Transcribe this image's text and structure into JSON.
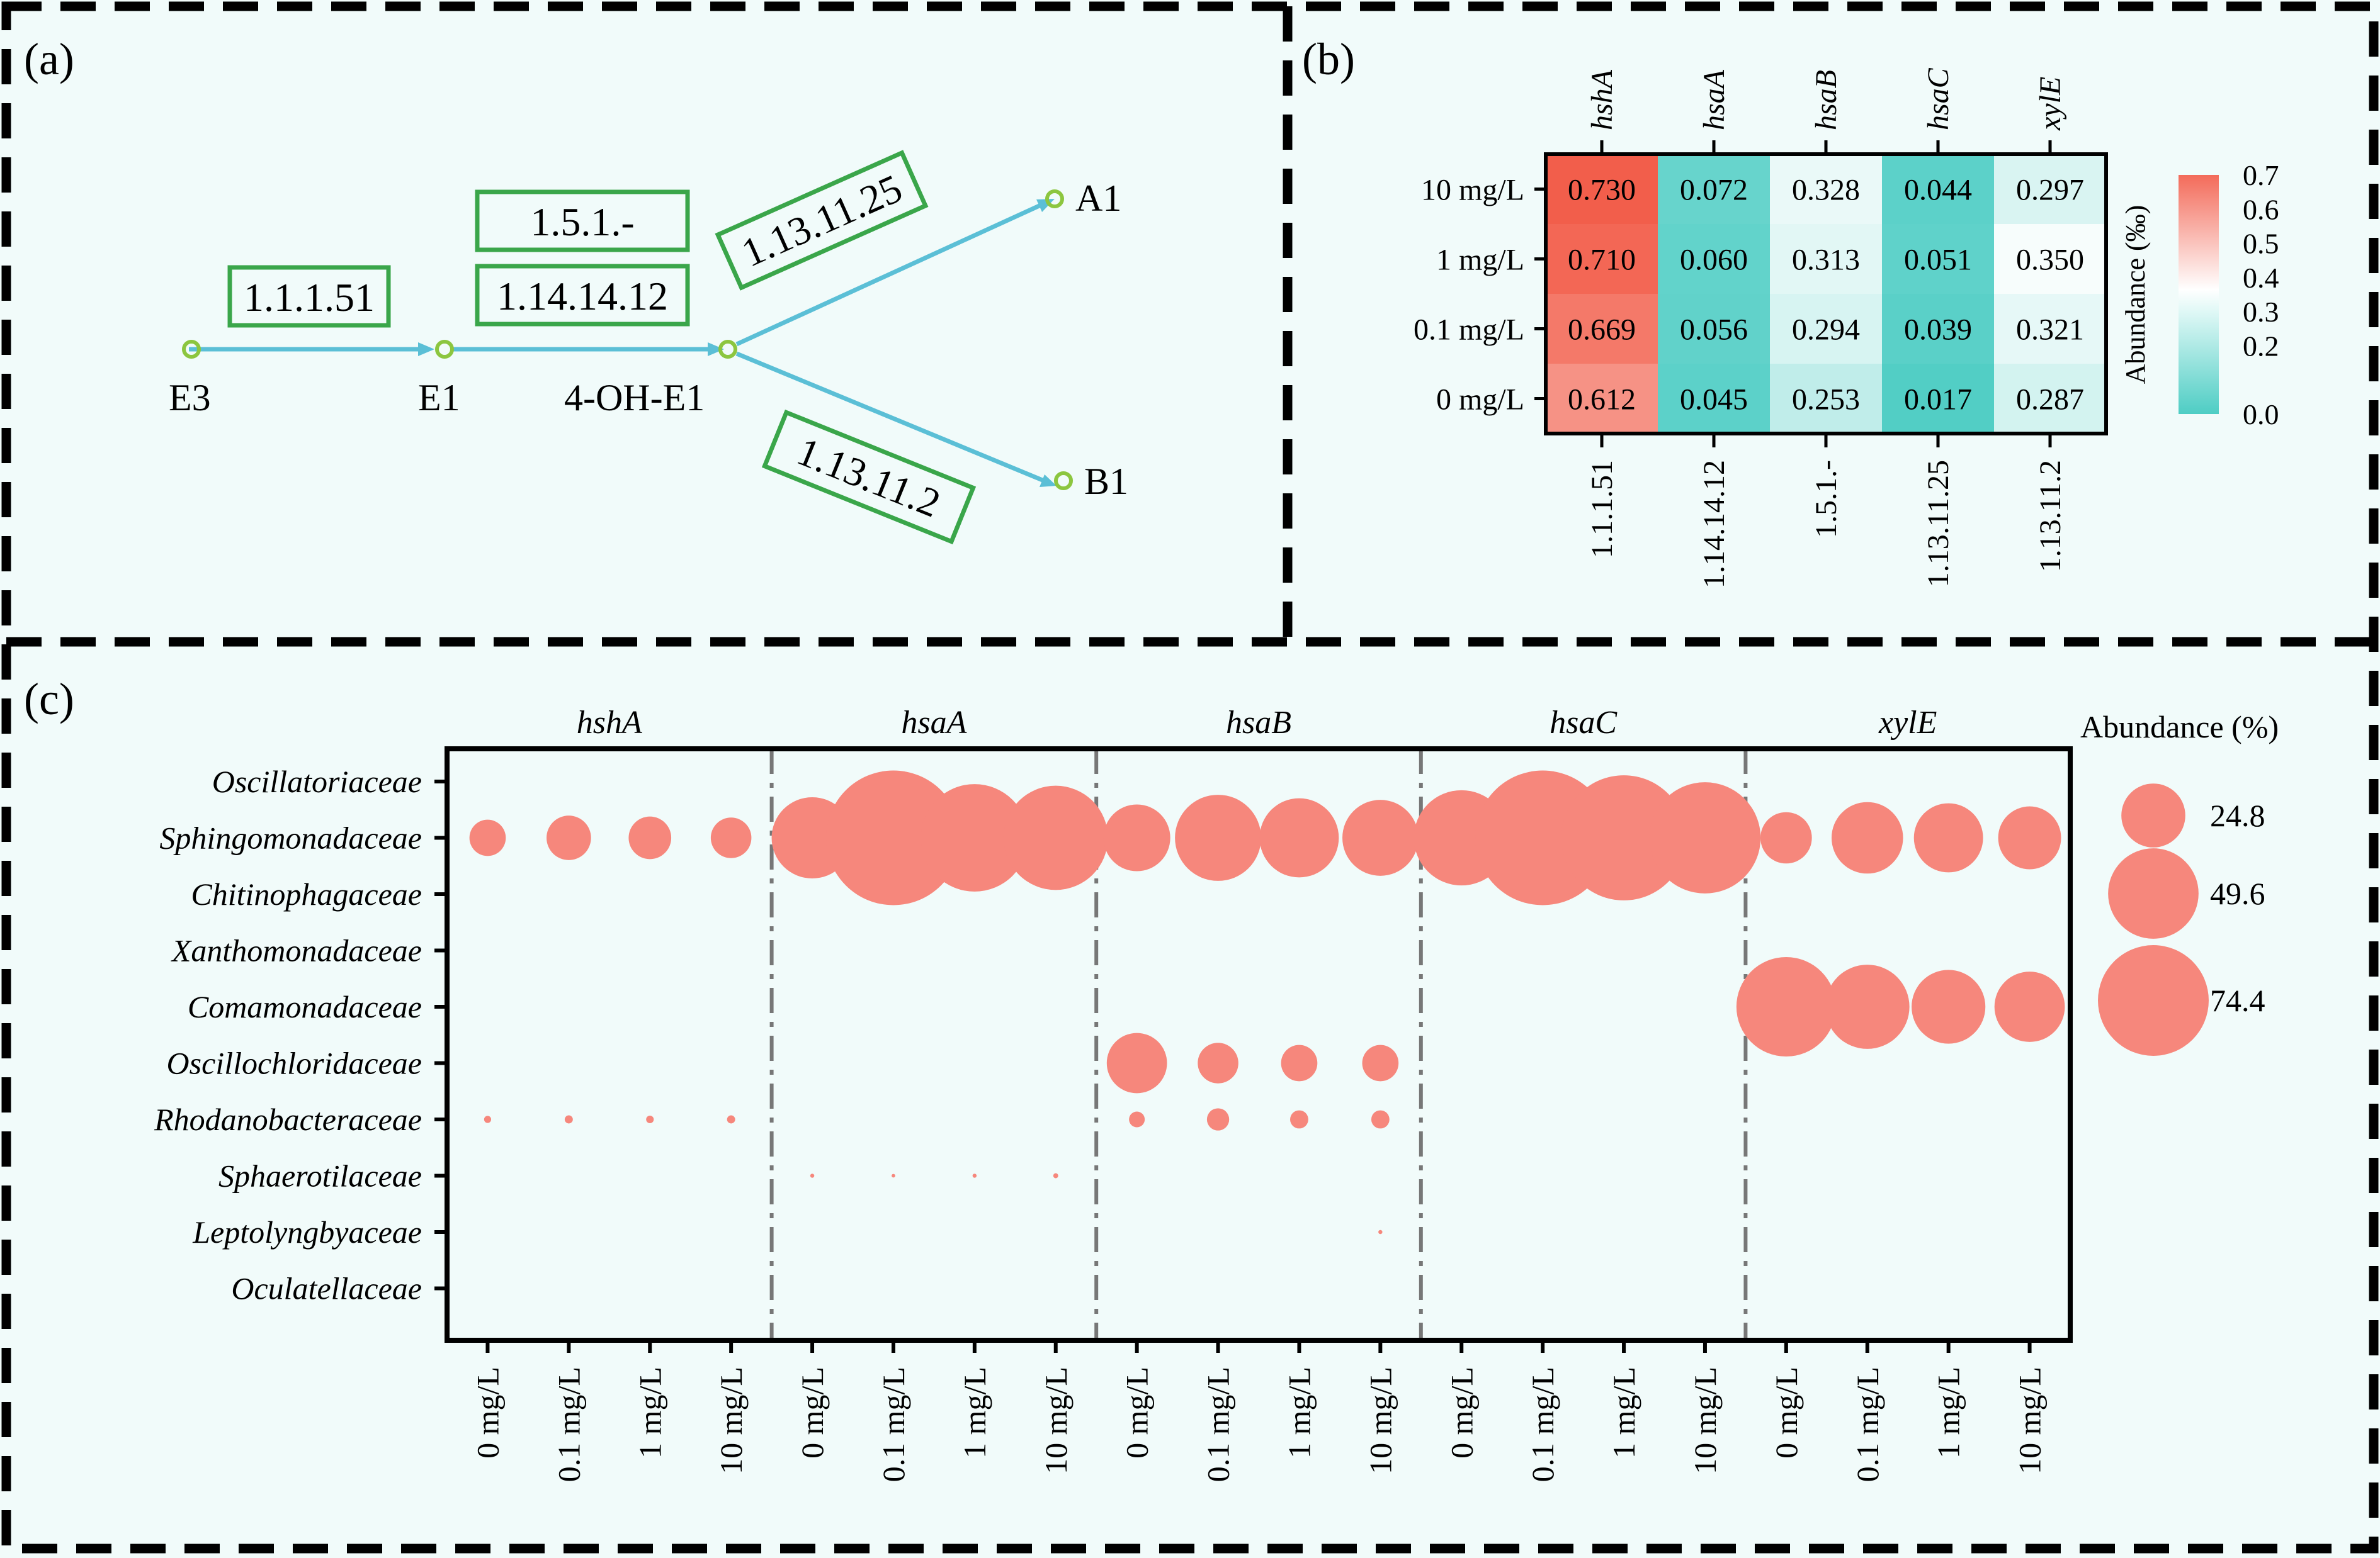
{
  "panel_labels": {
    "a": "(a)",
    "b": "(b)",
    "c": "(c)"
  },
  "colors": {
    "background": "#f1fbfa",
    "arrow": "#5bbfd6",
    "node_ring": "#8cc63f",
    "enzyme_box": "#3aa64a",
    "heat_low": "#4ecdc4",
    "heat_mid": "#ffffff",
    "heat_high": "#f36b5a",
    "bubble": "#f6877c",
    "divider": "#777777"
  },
  "pathway": {
    "nodes": [
      {
        "id": "E3",
        "label": "E3"
      },
      {
        "id": "E1",
        "label": "E1"
      },
      {
        "id": "4OH",
        "label": "4-OH-E1"
      },
      {
        "id": "A1",
        "label": "A1"
      },
      {
        "id": "B1",
        "label": "B1"
      }
    ],
    "enzymes": [
      {
        "id": "e1",
        "label": "1.1.1.51"
      },
      {
        "id": "e2",
        "label": "1.5.1.-"
      },
      {
        "id": "e3",
        "label": "1.14.14.12"
      },
      {
        "id": "e4",
        "label": "1.13.11.25"
      },
      {
        "id": "e5",
        "label": "1.13.11.2"
      }
    ]
  },
  "chart_data": [
    {
      "type": "heatmap",
      "title": "",
      "genes": [
        "hshA",
        "hsaA",
        "hsaB",
        "hsaC",
        "xylE"
      ],
      "enzymes": [
        "1.1.1.51",
        "1.14.14.12",
        "1.5.1.-",
        "1.13.11.25",
        "1.13.11.2"
      ],
      "rows": [
        "10 mg/L",
        "1 mg/L",
        "0.1 mg/L",
        "0 mg/L"
      ],
      "values": [
        [
          0.73,
          0.072,
          0.328,
          0.044,
          0.297
        ],
        [
          0.71,
          0.06,
          0.313,
          0.051,
          0.35
        ],
        [
          0.669,
          0.056,
          0.294,
          0.039,
          0.321
        ],
        [
          0.612,
          0.045,
          0.253,
          0.017,
          0.287
        ]
      ],
      "value_labels": [
        [
          "0.730",
          "0.072",
          "0.328",
          "0.044",
          "0.297"
        ],
        [
          "0.710",
          "0.060",
          "0.313",
          "0.051",
          "0.350"
        ],
        [
          "0.669",
          "0.056",
          "0.294",
          "0.039",
          "0.321"
        ],
        [
          "0.612",
          "0.045",
          "0.253",
          "0.017",
          "0.287"
        ]
      ],
      "colorbar": {
        "label": "Abundance (‰)",
        "range": [
          0.0,
          0.7
        ],
        "ticks": [
          "0.7",
          "0.6",
          "0.5",
          "0.4",
          "0.3",
          "0.2",
          "0.0"
        ]
      }
    },
    {
      "type": "scatter",
      "title": "",
      "panels": [
        "hshA",
        "hsaA",
        "hsaB",
        "hsaC",
        "xylE"
      ],
      "concentrations": [
        "0 mg/L",
        "0.1 mg/L",
        "1 mg/L",
        "10 mg/L"
      ],
      "families": [
        "Oscillatoriaceae",
        "Sphingomonadaceae",
        "Chitinophagaceae",
        "Xanthomonadaceae",
        "Comamonadaceae",
        "Oscillochloridaceae",
        "Rhodanobacteraceae",
        "Sphaerotilaceae",
        "Leptolyngbyaceae",
        "Oculatellaceae"
      ],
      "values": {
        "hshA": [
          [
            0,
            0,
            0,
            0
          ],
          [
            8,
            12,
            11,
            10
          ],
          [
            0,
            0,
            0,
            0
          ],
          [
            0,
            0,
            0,
            0
          ],
          [
            0,
            0,
            0,
            0
          ],
          [
            0,
            0,
            0,
            0
          ],
          [
            0.3,
            0.4,
            0.35,
            0.4
          ],
          [
            0,
            0,
            0,
            0
          ],
          [
            0,
            0,
            0,
            0
          ],
          [
            0,
            0,
            0,
            0
          ]
        ],
        "hsaA": [
          [
            0,
            0,
            0,
            0
          ],
          [
            40,
            110,
            70,
            66
          ],
          [
            0,
            0,
            0,
            0
          ],
          [
            0,
            0,
            0,
            0
          ],
          [
            0,
            0,
            0,
            0
          ],
          [
            0,
            0,
            0,
            0
          ],
          [
            0,
            0,
            0,
            0
          ],
          [
            0.1,
            0.08,
            0.1,
            0.15
          ],
          [
            0,
            0,
            0,
            0
          ],
          [
            0,
            0,
            0,
            0
          ]
        ],
        "hsaB": [
          [
            0,
            0,
            0,
            0
          ],
          [
            27,
            45,
            38,
            35
          ],
          [
            0,
            0,
            0,
            0
          ],
          [
            0,
            0,
            0,
            0
          ],
          [
            0,
            0,
            0,
            0
          ],
          [
            22,
            10,
            8,
            8
          ],
          [
            1.5,
            3,
            2,
            2
          ],
          [
            0,
            0,
            0,
            0
          ],
          [
            0,
            0,
            0,
            0.1
          ],
          [
            0,
            0,
            0,
            0
          ]
        ],
        "hsaC": [
          [
            0,
            0,
            0,
            0
          ],
          [
            55,
            110,
            95,
            75
          ],
          [
            0,
            0,
            0,
            0
          ],
          [
            0,
            0,
            0,
            0
          ],
          [
            0,
            0,
            0,
            0
          ],
          [
            0,
            0,
            0,
            0
          ],
          [
            0,
            0,
            0,
            0
          ],
          [
            0,
            0,
            0,
            0
          ],
          [
            0,
            0,
            0,
            0
          ],
          [
            0,
            0,
            0,
            0
          ]
        ],
        "xylE": [
          [
            0,
            0,
            0,
            0
          ],
          [
            16,
            31,
            29,
            24
          ],
          [
            0,
            0,
            0,
            0
          ],
          [
            0,
            0,
            0,
            0
          ],
          [
            60,
            43,
            33,
            30
          ],
          [
            0,
            0,
            0,
            0
          ],
          [
            0,
            0,
            0,
            0
          ],
          [
            0,
            0,
            0,
            0
          ],
          [
            0,
            0,
            0,
            0
          ],
          [
            0,
            0,
            0,
            0
          ]
        ]
      },
      "legend": {
        "title": "Abundance (%)",
        "values": [
          24.8,
          49.6,
          74.4
        ],
        "labels": [
          "24.8",
          "49.6",
          "74.4"
        ]
      }
    }
  ]
}
